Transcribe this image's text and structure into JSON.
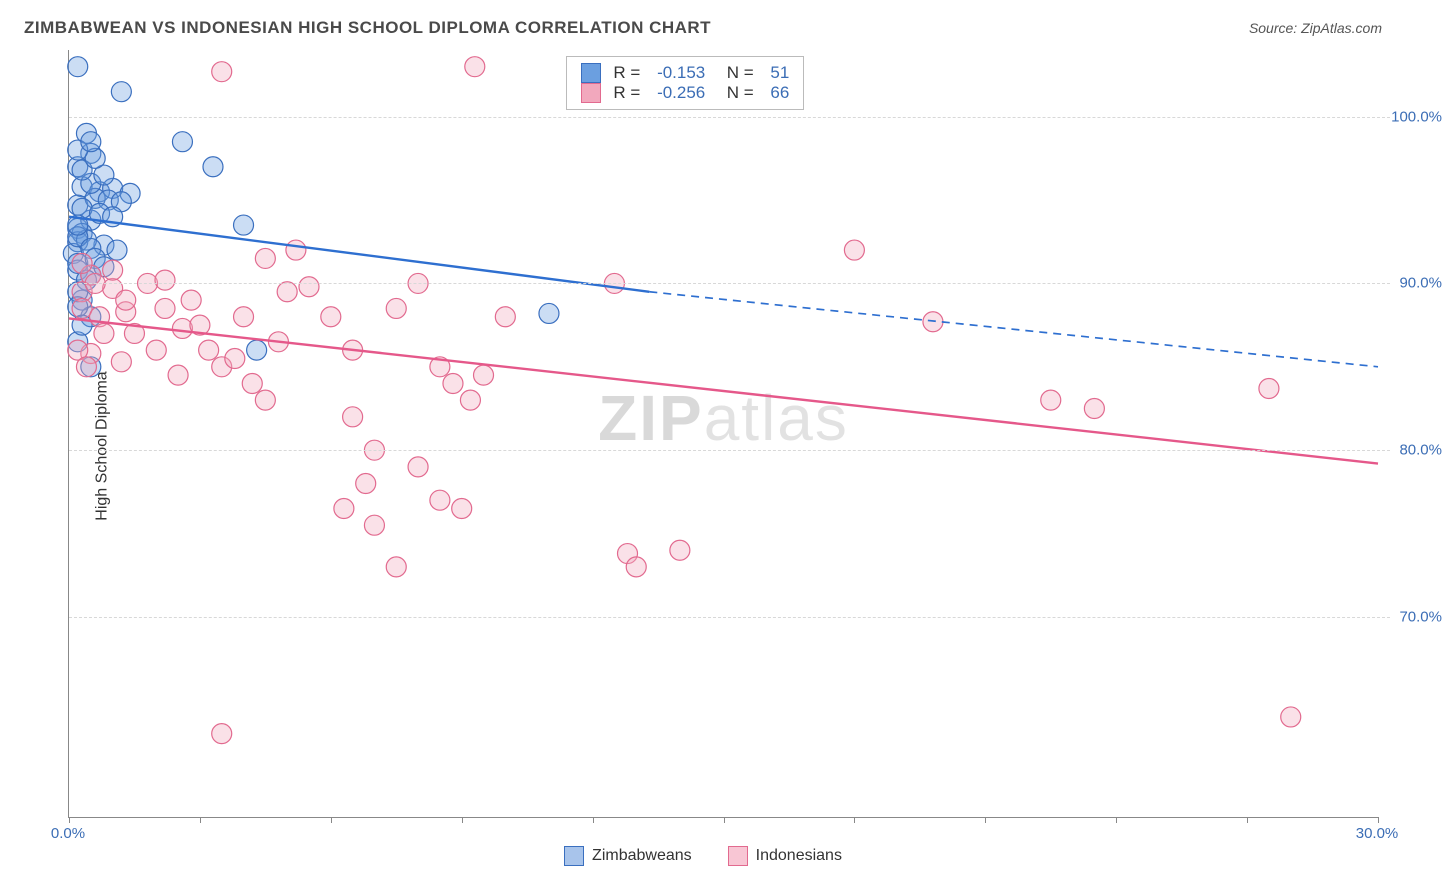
{
  "title": "ZIMBABWEAN VS INDONESIAN HIGH SCHOOL DIPLOMA CORRELATION CHART",
  "source": "Source: ZipAtlas.com",
  "ylabel": "High School Diploma",
  "watermark_prefix": "ZIP",
  "watermark_suffix": "atlas",
  "chart": {
    "type": "scatter",
    "xlim": [
      0,
      30
    ],
    "ylim": [
      58,
      104
    ],
    "x_tick_positions": [
      0,
      3,
      6,
      9,
      12,
      15,
      18,
      21,
      24,
      27,
      30
    ],
    "x_tick_labels_visible": {
      "0": "0.0%",
      "30": "30.0%"
    },
    "y_ticks": [
      70,
      80,
      90,
      100
    ],
    "y_tick_labels": {
      "70": "70.0%",
      "80": "80.0%",
      "90": "90.0%",
      "100": "100.0%"
    },
    "grid_color": "#d8d8d8",
    "background_color": "#ffffff",
    "marker_radius": 10,
    "marker_fill_opacity": 0.35,
    "marker_stroke_width": 1.2,
    "axis_label_color": "#3b6db5",
    "series": [
      {
        "name": "Zimbabweans",
        "color": "#6b9fe0",
        "stroke": "#3a6fbf",
        "points": [
          [
            0.2,
            103.0
          ],
          [
            1.2,
            101.5
          ],
          [
            0.4,
            99.0
          ],
          [
            0.5,
            97.8
          ],
          [
            2.6,
            98.5
          ],
          [
            3.3,
            97.0
          ],
          [
            0.3,
            95.8
          ],
          [
            0.7,
            95.5
          ],
          [
            1.0,
            95.7
          ],
          [
            1.4,
            95.4
          ],
          [
            0.2,
            94.7
          ],
          [
            0.6,
            95.1
          ],
          [
            0.9,
            95.0
          ],
          [
            1.2,
            94.9
          ],
          [
            0.2,
            93.3
          ],
          [
            0.5,
            93.8
          ],
          [
            0.3,
            93.0
          ],
          [
            4.0,
            93.5
          ],
          [
            0.2,
            92.5
          ],
          [
            0.8,
            92.3
          ],
          [
            1.1,
            92.0
          ],
          [
            0.1,
            91.8
          ],
          [
            0.4,
            92.6
          ],
          [
            0.2,
            90.8
          ],
          [
            0.5,
            90.5
          ],
          [
            0.3,
            89.0
          ],
          [
            0.5,
            88.0
          ],
          [
            0.2,
            86.5
          ],
          [
            0.5,
            85.0
          ],
          [
            4.3,
            86.0
          ],
          [
            11.0,
            88.2
          ],
          [
            0.3,
            94.5
          ],
          [
            0.7,
            94.2
          ],
          [
            1.0,
            94.0
          ],
          [
            0.2,
            92.8
          ],
          [
            0.5,
            92.1
          ],
          [
            0.2,
            91.2
          ],
          [
            0.4,
            90.2
          ],
          [
            0.2,
            89.5
          ],
          [
            0.2,
            88.6
          ],
          [
            0.3,
            87.5
          ],
          [
            0.6,
            91.5
          ],
          [
            0.8,
            91.0
          ],
          [
            0.2,
            97.0
          ],
          [
            0.5,
            96.0
          ],
          [
            0.8,
            96.5
          ],
          [
            0.3,
            96.8
          ],
          [
            0.6,
            97.5
          ],
          [
            0.2,
            98.0
          ],
          [
            0.5,
            98.5
          ],
          [
            0.2,
            93.5
          ]
        ],
        "regression": {
          "R": "-0.153",
          "N": "51",
          "solid_start": [
            0,
            94.0
          ],
          "solid_end": [
            13.3,
            89.5
          ],
          "dashed_end": [
            30,
            85.0
          ],
          "line_width": 2.4,
          "line_color": "#2e6fd0"
        }
      },
      {
        "name": "Indonesians",
        "color": "#f2a8bd",
        "stroke": "#e26a8f",
        "points": [
          [
            9.3,
            103.0
          ],
          [
            3.5,
            102.7
          ],
          [
            0.5,
            90.5
          ],
          [
            0.3,
            89.5
          ],
          [
            1.0,
            89.7
          ],
          [
            1.8,
            90.0
          ],
          [
            0.3,
            88.5
          ],
          [
            0.7,
            88.0
          ],
          [
            1.3,
            88.3
          ],
          [
            2.2,
            90.2
          ],
          [
            2.6,
            87.3
          ],
          [
            1.5,
            87.0
          ],
          [
            2.0,
            86.0
          ],
          [
            3.0,
            87.5
          ],
          [
            4.0,
            88.0
          ],
          [
            4.5,
            91.5
          ],
          [
            5.0,
            89.5
          ],
          [
            4.8,
            86.5
          ],
          [
            3.5,
            85.0
          ],
          [
            2.5,
            84.5
          ],
          [
            1.2,
            85.3
          ],
          [
            0.5,
            85.8
          ],
          [
            5.2,
            92.0
          ],
          [
            5.5,
            89.8
          ],
          [
            6.0,
            88.0
          ],
          [
            6.5,
            86.0
          ],
          [
            7.5,
            88.5
          ],
          [
            8.0,
            90.0
          ],
          [
            8.5,
            85.0
          ],
          [
            8.8,
            84.0
          ],
          [
            9.2,
            83.0
          ],
          [
            9.5,
            84.5
          ],
          [
            10.0,
            88.0
          ],
          [
            6.5,
            82.0
          ],
          [
            7.0,
            80.0
          ],
          [
            8.0,
            79.0
          ],
          [
            9.0,
            76.5
          ],
          [
            8.5,
            77.0
          ],
          [
            12.5,
            90.0
          ],
          [
            6.8,
            78.0
          ],
          [
            6.3,
            76.5
          ],
          [
            7.0,
            75.5
          ],
          [
            7.5,
            73.0
          ],
          [
            12.8,
            73.8
          ],
          [
            13.0,
            73.0
          ],
          [
            14.0,
            74.0
          ],
          [
            3.5,
            63.0
          ],
          [
            28.0,
            64.0
          ],
          [
            18.0,
            92.0
          ],
          [
            19.8,
            87.7
          ],
          [
            22.5,
            83.0
          ],
          [
            23.5,
            82.5
          ],
          [
            27.5,
            83.7
          ],
          [
            0.3,
            91.2
          ],
          [
            0.6,
            90.0
          ],
          [
            1.0,
            90.8
          ],
          [
            1.3,
            89.0
          ],
          [
            0.8,
            87.0
          ],
          [
            2.2,
            88.5
          ],
          [
            2.8,
            89.0
          ],
          [
            3.2,
            86.0
          ],
          [
            3.8,
            85.5
          ],
          [
            4.2,
            84.0
          ],
          [
            4.5,
            83.0
          ],
          [
            0.2,
            86.0
          ],
          [
            0.4,
            85.0
          ]
        ],
        "regression": {
          "R": "-0.256",
          "N": "66",
          "solid_start": [
            0,
            87.9
          ],
          "solid_end": [
            30,
            79.2
          ],
          "dashed_end": null,
          "line_width": 2.4,
          "line_color": "#e5588a"
        }
      }
    ]
  },
  "bottom_legend": [
    {
      "label": "Zimbabweans",
      "fill": "#a8c4eb",
      "stroke": "#3a6fbf"
    },
    {
      "label": "Indonesians",
      "fill": "#f8c6d4",
      "stroke": "#e26a8f"
    }
  ]
}
